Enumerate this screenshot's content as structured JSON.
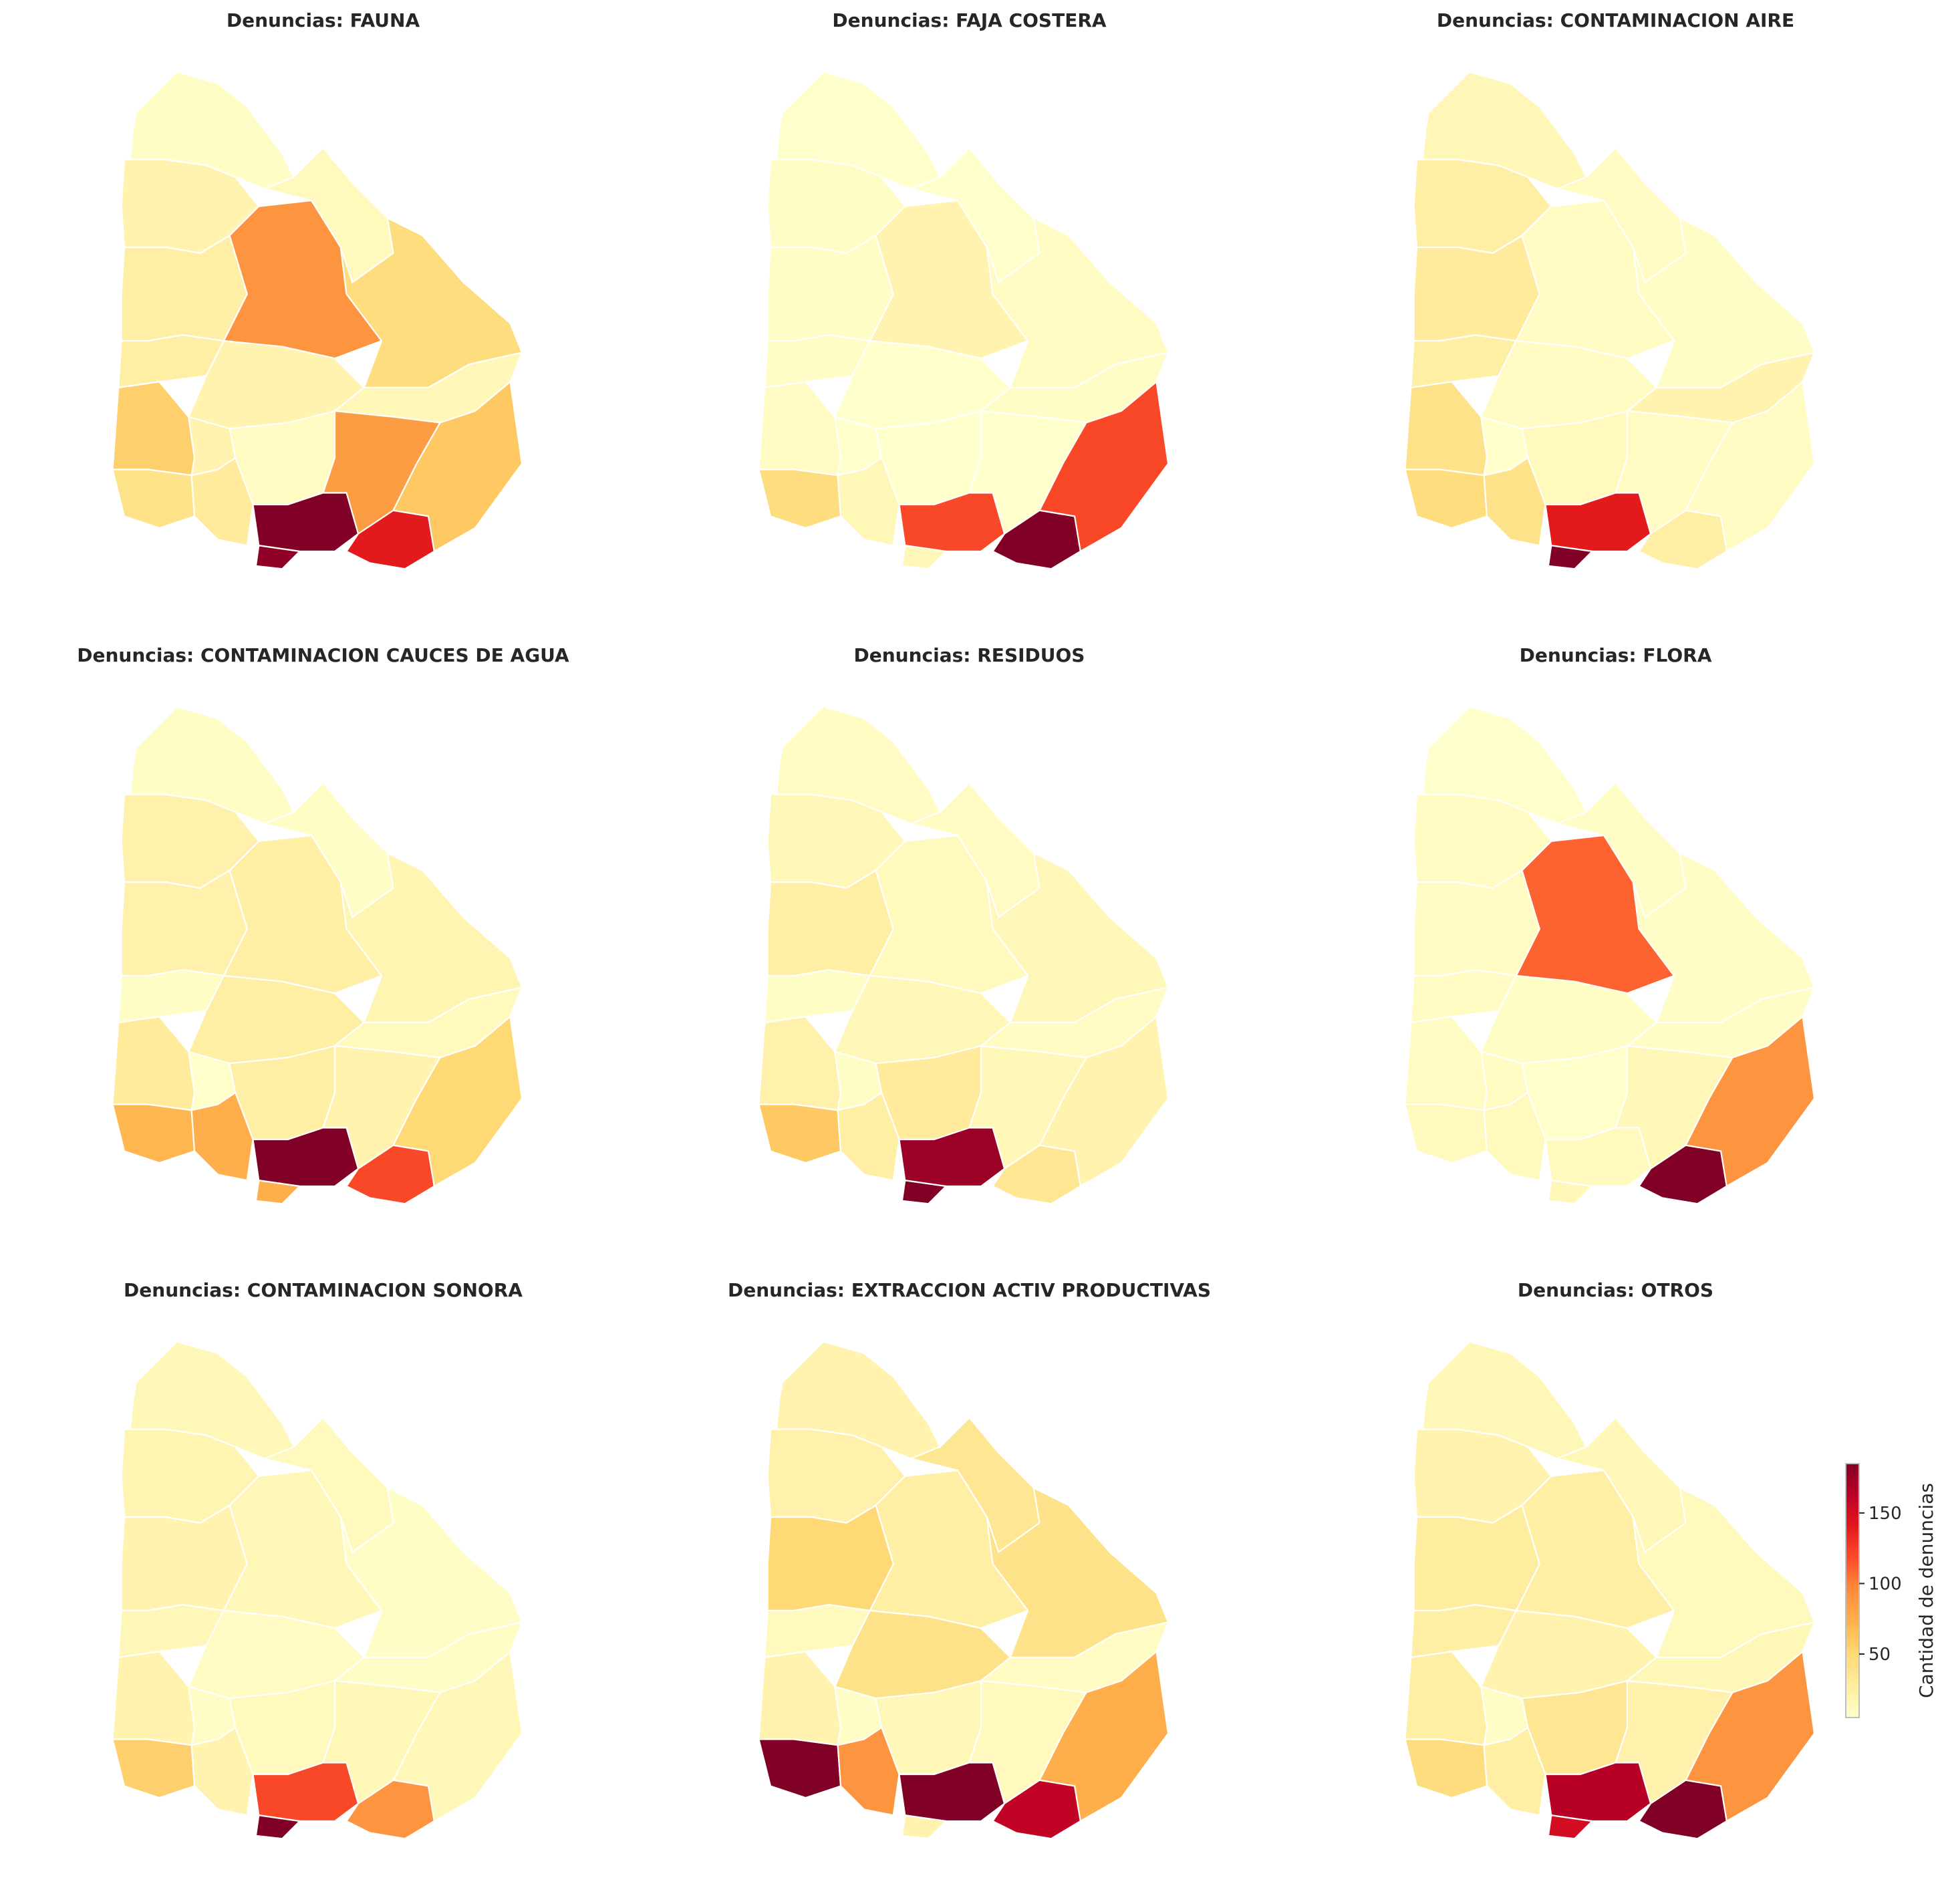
{
  "colormap": {
    "name": "YlOrRd",
    "stops": [
      "#ffffcc",
      "#ffeda0",
      "#fed976",
      "#feb24c",
      "#fd8d3c",
      "#fc4e2a",
      "#e31a1c",
      "#bd0026",
      "#800026"
    ]
  },
  "colorbar": {
    "label": "Cantidad de denuncias",
    "min": 5,
    "max": 185,
    "ticks": [
      "50",
      "100",
      "150"
    ],
    "tick_values": [
      50,
      100,
      150
    ]
  },
  "departments": [
    "artigas",
    "rivera",
    "salto",
    "tacuarembo",
    "cerro_largo",
    "paysandu",
    "rio_negro",
    "durazno",
    "treinta_y_tres",
    "soriano",
    "flores",
    "florida",
    "lavalleja",
    "rocha",
    "colonia",
    "san_jose",
    "canelones",
    "maldonado",
    "montevideo"
  ],
  "panels": [
    {
      "title": "Denuncias: FAUNA",
      "values": {
        "artigas": 8,
        "rivera": 12,
        "salto": 20,
        "tacuarembo": 90,
        "cerro_largo": 45,
        "paysandu": 25,
        "rio_negro": 25,
        "durazno": 20,
        "treinta_y_tres": 15,
        "soriano": 55,
        "flores": 20,
        "florida": 10,
        "lavalleja": 85,
        "rocha": 60,
        "colonia": 40,
        "san_jose": 30,
        "canelones": 185,
        "maldonado": 140,
        "montevideo": 180
      }
    },
    {
      "title": "Denuncias: FAJA COSTERA",
      "values": {
        "artigas": 5,
        "rivera": 5,
        "salto": 8,
        "tacuarembo": 20,
        "cerro_largo": 10,
        "paysandu": 8,
        "rio_negro": 8,
        "durazno": 5,
        "treinta_y_tres": 8,
        "soriano": 10,
        "flores": 5,
        "florida": 5,
        "lavalleja": 5,
        "rocha": 120,
        "colonia": 45,
        "san_jose": 15,
        "canelones": 120,
        "maldonado": 185,
        "montevideo": 15
      }
    },
    {
      "title": "Denuncias: CONTAMINACION AIRE",
      "values": {
        "artigas": 15,
        "rivera": 10,
        "salto": 25,
        "tacuarembo": 10,
        "cerro_largo": 8,
        "paysandu": 30,
        "rio_negro": 25,
        "durazno": 10,
        "treinta_y_tres": 20,
        "soriano": 40,
        "flores": 5,
        "florida": 12,
        "lavalleja": 10,
        "rocha": 10,
        "colonia": 45,
        "san_jose": 40,
        "canelones": 140,
        "maldonado": 25,
        "montevideo": 185
      }
    },
    {
      "title": "Denuncias: CONTAMINACION CAUCES DE AGUA",
      "values": {
        "artigas": 8,
        "rivera": 8,
        "salto": 22,
        "tacuarembo": 25,
        "cerro_largo": 18,
        "paysandu": 22,
        "rio_negro": 8,
        "durazno": 25,
        "treinta_y_tres": 12,
        "soriano": 30,
        "flores": 5,
        "florida": 25,
        "lavalleja": 20,
        "rocha": 50,
        "colonia": 70,
        "san_jose": 75,
        "canelones": 185,
        "maldonado": 120,
        "montevideo": 75
      }
    },
    {
      "title": "Denuncias: RESIDUOS",
      "values": {
        "artigas": 10,
        "rivera": 10,
        "salto": 15,
        "tacuarembo": 12,
        "cerro_largo": 15,
        "paysandu": 25,
        "rio_negro": 8,
        "durazno": 15,
        "treinta_y_tres": 10,
        "soriano": 22,
        "flores": 8,
        "florida": 30,
        "lavalleja": 15,
        "rocha": 20,
        "colonia": 60,
        "san_jose": 25,
        "canelones": 175,
        "maldonado": 35,
        "montevideo": 185
      }
    },
    {
      "title": "Denuncias: FLORA",
      "values": {
        "artigas": 5,
        "rivera": 8,
        "salto": 10,
        "tacuarembo": 110,
        "cerro_largo": 8,
        "paysandu": 10,
        "rio_negro": 10,
        "durazno": 8,
        "treinta_y_tres": 8,
        "soriano": 10,
        "flores": 10,
        "florida": 5,
        "lavalleja": 15,
        "rocha": 90,
        "colonia": 12,
        "san_jose": 12,
        "canelones": 12,
        "maldonado": 185,
        "montevideo": 15
      }
    },
    {
      "title": "Denuncias: CONTAMINACION SONORA",
      "values": {
        "artigas": 15,
        "rivera": 12,
        "salto": 18,
        "tacuarembo": 15,
        "cerro_largo": 8,
        "paysandu": 20,
        "rio_negro": 15,
        "durazno": 10,
        "treinta_y_tres": 8,
        "soriano": 20,
        "flores": 8,
        "florida": 12,
        "lavalleja": 15,
        "rocha": 15,
        "colonia": 55,
        "san_jose": 20,
        "canelones": 120,
        "maldonado": 90,
        "montevideo": 185
      }
    },
    {
      "title": "Denuncias: EXTRACCION ACTIV PRODUCTIVAS",
      "values": {
        "artigas": 20,
        "rivera": 35,
        "salto": 22,
        "tacuarembo": 25,
        "cerro_largo": 40,
        "paysandu": 50,
        "rio_negro": 12,
        "durazno": 40,
        "treinta_y_tres": 10,
        "soriano": 20,
        "flores": 8,
        "florida": 15,
        "lavalleja": 12,
        "rocha": 75,
        "colonia": 185,
        "san_jose": 90,
        "canelones": 185,
        "maldonado": 160,
        "montevideo": 20
      }
    },
    {
      "title": "Denuncias: OTROS",
      "values": {
        "artigas": 15,
        "rivera": 15,
        "salto": 20,
        "tacuarembo": 25,
        "cerro_largo": 12,
        "paysandu": 28,
        "rio_negro": 25,
        "durazno": 20,
        "treinta_y_tres": 15,
        "soriano": 25,
        "flores": 8,
        "florida": 35,
        "lavalleja": 22,
        "rocha": 90,
        "colonia": 45,
        "san_jose": 25,
        "canelones": 165,
        "maldonado": 185,
        "montevideo": 150
      }
    }
  ]
}
